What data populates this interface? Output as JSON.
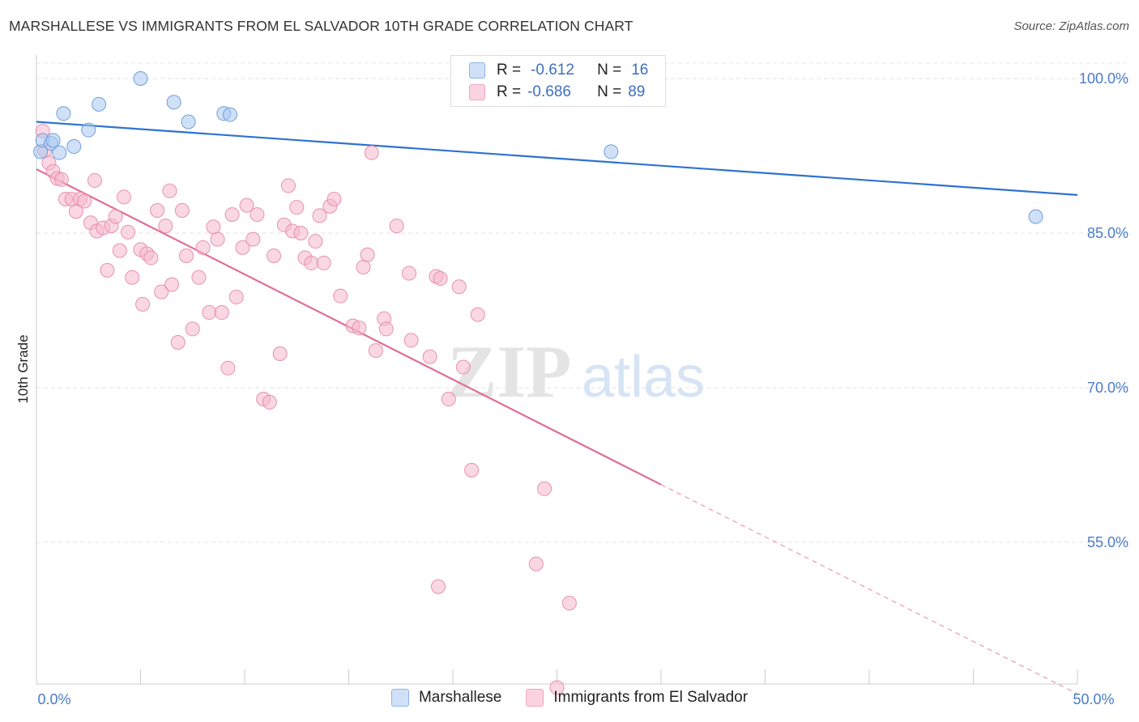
{
  "header": {
    "title": "MARSHALLESE VS IMMIGRANTS FROM EL SALVADOR 10TH GRADE CORRELATION CHART",
    "source": "Source: ZipAtlas.com"
  },
  "watermark": {
    "zip": "ZIP",
    "atlas": "atlas"
  },
  "legend": {
    "rows": [
      {
        "r_key": "R =",
        "r_value": "-0.612",
        "n_key": "N =",
        "n_value": "16",
        "color": "#a9c8f0"
      },
      {
        "r_key": "R =",
        "r_value": "-0.686",
        "n_key": "N =",
        "n_value": "89",
        "color": "#f6b8cc"
      }
    ]
  },
  "bottom_legend": {
    "items": [
      {
        "label": "Marshallese",
        "color": "#a9c8f0"
      },
      {
        "label": "Immigrants from El Salvador",
        "color": "#f6b8cc"
      }
    ]
  },
  "chart_data": {
    "type": "scatter",
    "title": "MARSHALLESE VS IMMIGRANTS FROM EL SALVADOR 10TH GRADE CORRELATION CHART",
    "xlabel": "",
    "ylabel": "10th Grade",
    "xlim": [
      0,
      50
    ],
    "ylim": [
      41,
      102
    ],
    "x_tick_labels": [
      {
        "value": 0,
        "label": "0.0%"
      },
      {
        "value": 50,
        "label": "50.0%"
      }
    ],
    "y_tick_labels": [
      {
        "value": 100,
        "label": "100.0%"
      },
      {
        "value": 85,
        "label": "85.0%"
      },
      {
        "value": 70,
        "label": "70.0%"
      },
      {
        "value": 55,
        "label": "55.0%"
      }
    ],
    "grid": true,
    "legend_position": "top-center",
    "series": [
      {
        "name": "Marshallese",
        "color": "#a9c8f0",
        "stroke": "#6f9fdc",
        "line_color": "#2f72cf",
        "trend": {
          "x1": 0.0,
          "y1": 95.8,
          "x2": 50.0,
          "y2": 88.7
        },
        "points": [
          [
            0.2,
            92.9
          ],
          [
            0.3,
            94.0
          ],
          [
            0.7,
            93.7
          ],
          [
            0.8,
            94.0
          ],
          [
            1.1,
            92.8
          ],
          [
            1.3,
            96.6
          ],
          [
            1.8,
            93.4
          ],
          [
            2.5,
            95.0
          ],
          [
            3.0,
            97.5
          ],
          [
            5.0,
            100.0
          ],
          [
            6.6,
            97.7
          ],
          [
            7.3,
            95.8
          ],
          [
            9.0,
            96.6
          ],
          [
            9.3,
            96.5
          ],
          [
            27.6,
            92.9
          ],
          [
            48.0,
            86.6
          ]
        ]
      },
      {
        "name": "Immigrants from El Salvador",
        "color": "#f6b8cc",
        "stroke": "#e890ad",
        "line_color": "#e06d99",
        "trend": {
          "x1": 0.0,
          "y1": 91.2,
          "x2": 30.0,
          "y2": 60.6
        },
        "trend_extension": {
          "x1": 30.0,
          "y1": 60.6,
          "x2": 50.0,
          "y2": 40.3
        },
        "points": [
          [
            0.3,
            94.9
          ],
          [
            0.4,
            93.0
          ],
          [
            0.6,
            91.8
          ],
          [
            0.8,
            91.0
          ],
          [
            1.0,
            90.3
          ],
          [
            1.2,
            90.2
          ],
          [
            1.4,
            88.3
          ],
          [
            1.7,
            88.3
          ],
          [
            1.9,
            87.1
          ],
          [
            2.1,
            88.3
          ],
          [
            2.3,
            88.1
          ],
          [
            2.6,
            86.0
          ],
          [
            2.8,
            90.1
          ],
          [
            2.9,
            85.2
          ],
          [
            3.2,
            85.5
          ],
          [
            3.4,
            81.4
          ],
          [
            3.6,
            85.7
          ],
          [
            3.8,
            86.6
          ],
          [
            4.0,
            83.3
          ],
          [
            4.2,
            88.5
          ],
          [
            4.4,
            85.1
          ],
          [
            4.6,
            80.7
          ],
          [
            5.0,
            83.4
          ],
          [
            5.1,
            78.1
          ],
          [
            5.3,
            83.0
          ],
          [
            5.5,
            82.6
          ],
          [
            5.8,
            87.2
          ],
          [
            6.0,
            79.3
          ],
          [
            6.2,
            85.7
          ],
          [
            6.4,
            89.1
          ],
          [
            6.5,
            80.0
          ],
          [
            6.8,
            74.4
          ],
          [
            7.0,
            87.2
          ],
          [
            7.2,
            82.8
          ],
          [
            7.5,
            75.7
          ],
          [
            7.8,
            80.7
          ],
          [
            8.0,
            83.6
          ],
          [
            8.3,
            77.3
          ],
          [
            8.5,
            85.6
          ],
          [
            8.7,
            84.4
          ],
          [
            8.9,
            77.3
          ],
          [
            9.2,
            71.9
          ],
          [
            9.4,
            86.8
          ],
          [
            9.6,
            78.8
          ],
          [
            9.9,
            83.6
          ],
          [
            10.1,
            87.7
          ],
          [
            10.4,
            84.4
          ],
          [
            10.6,
            86.8
          ],
          [
            10.9,
            68.9
          ],
          [
            11.2,
            68.6
          ],
          [
            11.4,
            82.8
          ],
          [
            11.7,
            73.3
          ],
          [
            11.9,
            85.8
          ],
          [
            12.1,
            89.6
          ],
          [
            12.3,
            85.2
          ],
          [
            12.5,
            87.5
          ],
          [
            12.7,
            85.0
          ],
          [
            12.9,
            82.6
          ],
          [
            13.2,
            82.1
          ],
          [
            13.4,
            84.2
          ],
          [
            13.6,
            86.7
          ],
          [
            13.8,
            82.1
          ],
          [
            14.1,
            87.6
          ],
          [
            14.3,
            88.3
          ],
          [
            14.6,
            78.9
          ],
          [
            15.2,
            76.0
          ],
          [
            15.5,
            75.8
          ],
          [
            15.7,
            81.7
          ],
          [
            15.9,
            82.9
          ],
          [
            16.1,
            92.8
          ],
          [
            16.3,
            73.6
          ],
          [
            16.7,
            76.7
          ],
          [
            16.8,
            75.7
          ],
          [
            17.3,
            85.7
          ],
          [
            17.9,
            81.1
          ],
          [
            18.0,
            74.6
          ],
          [
            18.9,
            73.0
          ],
          [
            19.3,
            50.7
          ],
          [
            19.2,
            80.8
          ],
          [
            19.4,
            80.6
          ],
          [
            19.8,
            68.9
          ],
          [
            20.3,
            79.8
          ],
          [
            20.5,
            72.0
          ],
          [
            20.9,
            62.0
          ],
          [
            21.2,
            77.1
          ],
          [
            24.4,
            60.2
          ],
          [
            24.0,
            52.9
          ],
          [
            25.6,
            49.1
          ],
          [
            25.0,
            40.9
          ]
        ]
      }
    ]
  }
}
